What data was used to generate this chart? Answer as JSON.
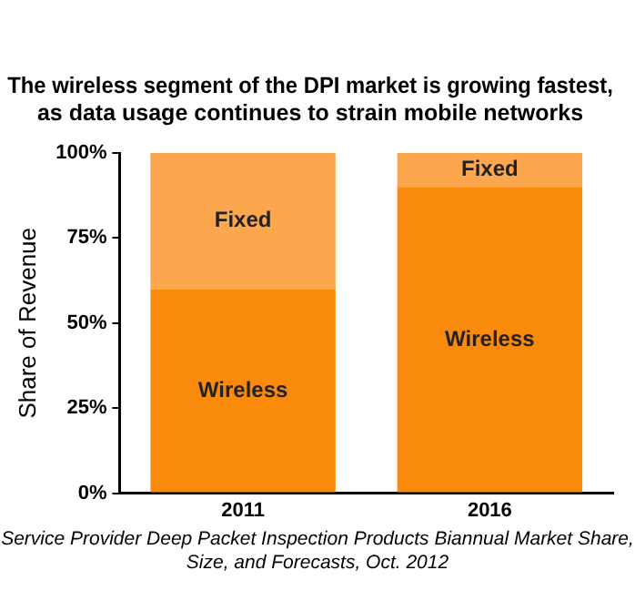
{
  "chart_data": {
    "type": "bar",
    "title": [
      "The wireless segment of the DPI market is growing fastest,",
      "as data usage continues to strain mobile networks"
    ],
    "ylabel": "Share of Revenue",
    "categories": [
      "2011",
      "2016"
    ],
    "series": [
      {
        "name": "Wireless",
        "color": "#f98a0c",
        "values": [
          60,
          90
        ]
      },
      {
        "name": "Fixed",
        "color": "#fca64e",
        "values": [
          40,
          10
        ]
      }
    ],
    "stacked": true,
    "ylim": [
      0,
      100
    ],
    "yticks": [
      {
        "value": 0,
        "label": "0%"
      },
      {
        "value": 25,
        "label": "25%"
      },
      {
        "value": 50,
        "label": "50%"
      },
      {
        "value": 75,
        "label": "75%"
      },
      {
        "value": 100,
        "label": "100%"
      }
    ],
    "grid": false,
    "legend": false,
    "annotations": [
      "Service Provider Deep Packet Inspection Products Biannual Market Share, Size, and Forecasts, Oct. 2012"
    ]
  }
}
